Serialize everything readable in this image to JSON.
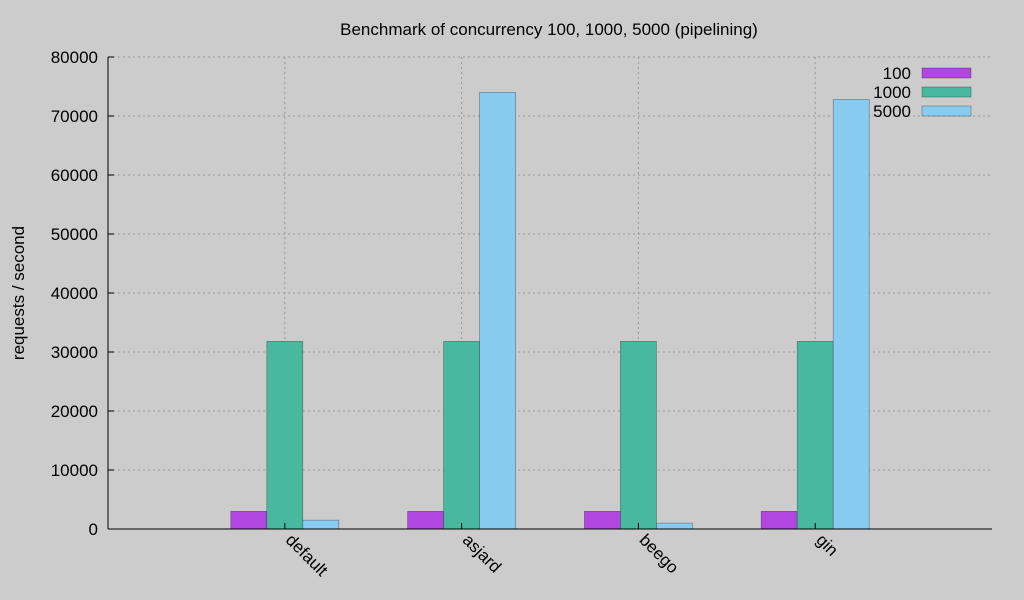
{
  "chart_data": {
    "type": "bar",
    "title": "Benchmark of concurrency 100, 1000, 5000 (pipelining)",
    "xlabel": "",
    "ylabel": "requests / second",
    "ylim": [
      0,
      80000
    ],
    "yticks": [
      0,
      10000,
      20000,
      30000,
      40000,
      50000,
      60000,
      70000,
      80000
    ],
    "categories": [
      "default",
      "asjard",
      "beego",
      "gin"
    ],
    "series": [
      {
        "name": "100",
        "color": "#b246e0",
        "values": [
          3000,
          3000,
          3000,
          3000
        ]
      },
      {
        "name": "1000",
        "color": "#48b99e",
        "values": [
          31800,
          31800,
          31800,
          31800
        ]
      },
      {
        "name": "5000",
        "color": "#88cbf0",
        "values": [
          1500,
          74000,
          1000,
          72800
        ]
      }
    ],
    "grid": true,
    "legend_position": "top-right"
  }
}
